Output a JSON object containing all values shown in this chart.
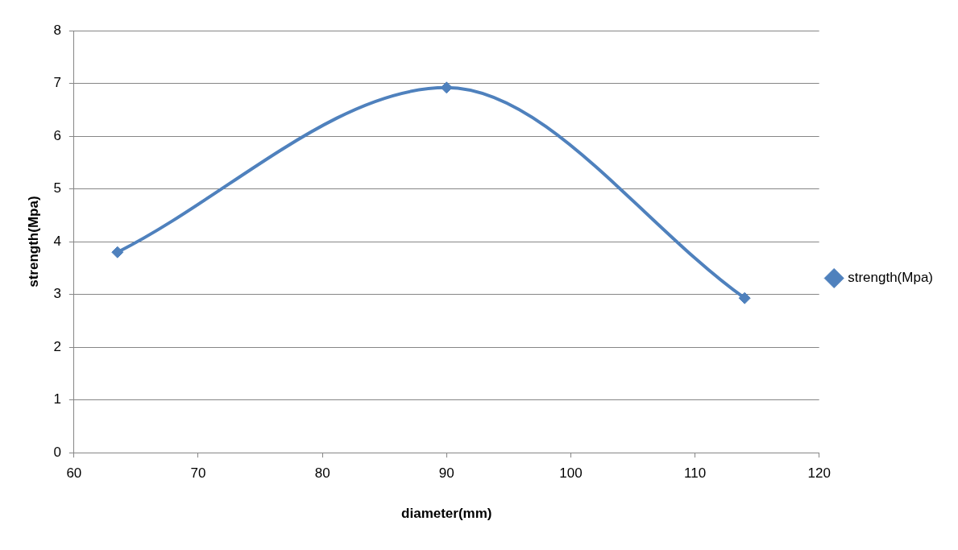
{
  "chart_data": {
    "type": "line",
    "xlabel": "diameter(mm)",
    "ylabel": "strength(Mpa)",
    "x": [
      63.5,
      90,
      114
    ],
    "series": [
      {
        "name": "strength(Mpa)",
        "color": "#4f81bd",
        "values": [
          3.8,
          6.92,
          2.93
        ]
      }
    ],
    "xlim": [
      60,
      120
    ],
    "xticks": [
      60,
      70,
      80,
      90,
      100,
      110,
      120
    ],
    "ylim": [
      0,
      8
    ],
    "yticks": [
      0,
      1,
      2,
      3,
      4,
      5,
      6,
      7,
      8
    ],
    "grid": "y",
    "legend": "right",
    "marker": "diamond",
    "line_style": "solid"
  }
}
